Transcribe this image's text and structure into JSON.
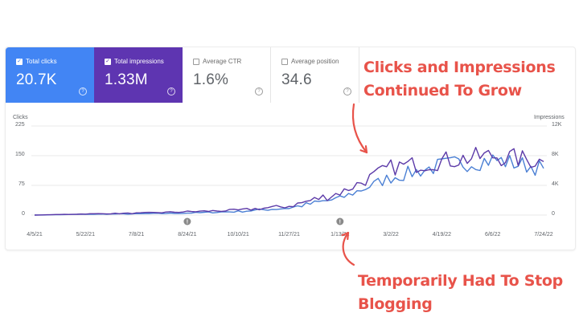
{
  "metrics": {
    "clicks": {
      "label": "Total clicks",
      "value": "20.7K",
      "checked": true
    },
    "impressions": {
      "label": "Total impressions",
      "value": "1.33M",
      "checked": true
    },
    "ctr": {
      "label": "Average CTR",
      "value": "1.6%",
      "checked": false
    },
    "position": {
      "label": "Average position",
      "value": "34.6",
      "checked": false
    },
    "help_glyph": "?"
  },
  "chart": {
    "left_title": "Clicks",
    "right_title": "Impressions",
    "left_ticks": [
      "225",
      "150",
      "75",
      "0"
    ],
    "right_ticks": [
      "12K",
      "8K",
      "4K",
      "0"
    ],
    "x_ticks": [
      "4/5/21",
      "5/22/21",
      "7/8/21",
      "8/24/21",
      "10/10/21",
      "11/27/21",
      "1/13/22",
      "3/2/22",
      "4/19/22",
      "6/6/22",
      "7/24/22"
    ],
    "marker_glyph": "!"
  },
  "chart_data": {
    "type": "line",
    "x": [
      "4/5/21",
      "5/22/21",
      "7/8/21",
      "8/24/21",
      "10/10/21",
      "11/27/21",
      "1/13/22",
      "3/2/22",
      "4/19/22",
      "6/6/22",
      "7/24/22"
    ],
    "series": [
      {
        "name": "Clicks",
        "axis": "left",
        "color": "#4a7fd4",
        "values": [
          0,
          2,
          3,
          5,
          9,
          18,
          42,
          95,
          125,
          140,
          118
        ]
      },
      {
        "name": "Impressions",
        "axis": "right",
        "color": "#5c3aa8",
        "values": [
          0,
          150,
          250,
          450,
          650,
          1200,
          3000,
          6400,
          7300,
          8000,
          7200
        ]
      }
    ],
    "ylim_left": [
      0,
      225
    ],
    "ylim_right": [
      0,
      12000
    ],
    "annotation_markers": [
      "8/24/21",
      "1/13/22"
    ]
  },
  "annotations": {
    "grow": [
      "Clicks and Impressions",
      "Continued To Grow"
    ],
    "stop": [
      "Temporarily Had To Stop",
      "Blogging"
    ],
    "color": "#e8534a"
  }
}
